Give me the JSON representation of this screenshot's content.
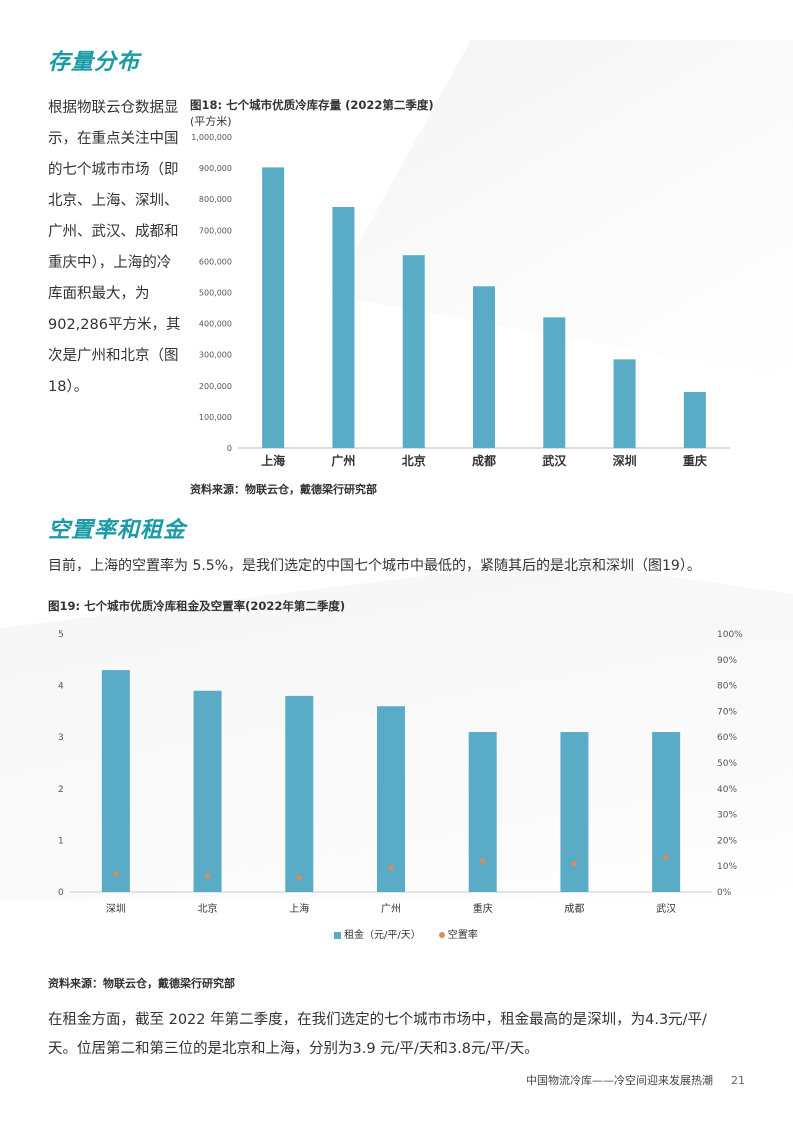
{
  "section1": {
    "title": "存量分布"
  },
  "para1": "根据物联云仓数据显示，在重点关注中国的七个城市市场（即北京、上海、深圳、广州、武汉、成都和重庆中），上海的冷库面积最大，为902,286平方米，其次是广州和北京（图18）。",
  "fig18": {
    "title": "图18: 七个城市优质冷库存量 (2022第二季度)",
    "unit": "(平方米)",
    "source": "资料来源：物联云仓，戴德梁行研究部"
  },
  "section2": {
    "title": "空置率和租金"
  },
  "para2": "目前，上海的空置率为 5.5%，是我们选定的中国七个城市中最低的，紧随其后的是北京和深圳（图19）。",
  "fig19": {
    "title": "图19: 七个城市优质冷库租金及空置率(2022年第二季度)",
    "source": "资料来源：物联云仓，戴德梁行研究部",
    "legend_rent": "租金（元/平/天）",
    "legend_vacancy": "空置率"
  },
  "para3": "在租金方面，截至 2022 年第二季度，在我们选定的七个城市市场中，租金最高的是深圳，为4.3元/平/天。位居第二和第三位的是北京和上海，分别为3.9 元/平/天和3.8元/平/天。",
  "footer": {
    "text": "中国物流冷库——冷空间迎来发展热潮",
    "page": "21"
  },
  "chart_data": [
    {
      "type": "bar",
      "categories": [
        "上海",
        "广州",
        "北京",
        "成都",
        "武汉",
        "深圳",
        "重庆"
      ],
      "values": [
        902286,
        775000,
        620000,
        520000,
        420000,
        285000,
        180000
      ],
      "ylim": [
        0,
        1000000
      ],
      "yticks": [
        "0",
        "100,000",
        "200,000",
        "300,000",
        "400,000",
        "500,000",
        "600,000",
        "700,000",
        "800,000",
        "900,000",
        "1,000,000"
      ],
      "bar_color": "#5aacc6",
      "grid": false
    },
    {
      "type": "bar",
      "categories": [
        "深圳",
        "北京",
        "上海",
        "广州",
        "重庆",
        "成都",
        "武汉"
      ],
      "series": [
        {
          "name": "租金（元/平/天）",
          "values": [
            4.3,
            3.9,
            3.8,
            3.6,
            3.1,
            3.1,
            3.1
          ],
          "axis": "left",
          "kind": "bar",
          "color": "#5aacc6"
        },
        {
          "name": "空置率",
          "values": [
            7,
            6,
            5.5,
            9.5,
            12,
            11,
            13.5
          ],
          "axis": "right",
          "kind": "scatter",
          "color": "#e08a55"
        }
      ],
      "ylim": [
        0,
        5
      ],
      "y2lim": [
        0,
        100
      ],
      "yticks": [
        "0",
        "1",
        "2",
        "3",
        "4",
        "5"
      ],
      "y2ticks": [
        "0%",
        "10%",
        "20%",
        "30%",
        "40%",
        "50%",
        "60%",
        "70%",
        "80%",
        "90%",
        "100%"
      ],
      "legend": "bottom",
      "grid": false
    }
  ]
}
